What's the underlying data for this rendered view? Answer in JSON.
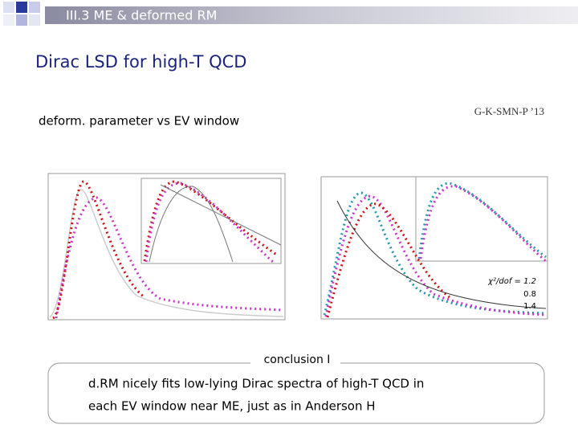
{
  "header": {
    "section": "III.3  ME & deformed RM"
  },
  "title": "Dirac LSD for high-T QCD",
  "subtitle": "deform. parameter vs EV window",
  "citation": "G-K-SMN-P ’13",
  "figure": {
    "fit_labels": [
      "χ²/dof = 1.2",
      "0.8",
      "1.4"
    ]
  },
  "conclusion": {
    "label": "conclusion I",
    "lines": [
      "d.RM nicely fits low-lying Dirac spectra of high-T QCD in",
      "each EV window near ME, just as in Anderson H"
    ]
  }
}
